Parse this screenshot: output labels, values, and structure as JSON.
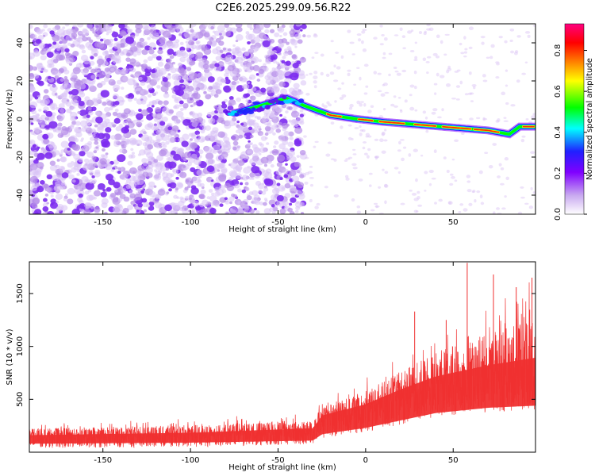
{
  "title": "C2E6.2025.299.09.56.R22",
  "chart_data": [
    {
      "type": "heatmap",
      "name": "spectrogram",
      "xlabel": "Height of straight line (km)",
      "ylabel": "Frequency (Hz)",
      "xlim": [
        -192,
        97
      ],
      "ylim": [
        -50,
        50
      ],
      "xticks": [
        -150,
        -100,
        -50,
        0,
        50
      ],
      "yticks": [
        -40,
        -20,
        0,
        20,
        40
      ],
      "colorbar": {
        "label": "Normalized spectral amplitude",
        "range": [
          0,
          0.93
        ],
        "ticks": [
          0.0,
          0.2,
          0.4,
          0.6,
          0.8
        ],
        "colors": [
          "#ffffff",
          "#c8a8f0",
          "#8000ff",
          "#2020ff",
          "#00ffff",
          "#00ff00",
          "#ffff00",
          "#ff8000",
          "#ff0000",
          "#ff0080"
        ]
      },
      "colors": {
        "noise_light": "#d9c2f5",
        "noise_mid": "#b58ce8",
        "noise_dark": "#7d2cf0"
      },
      "noise_edge_km": -35,
      "ridge": [
        {
          "x": -75,
          "freq": 3,
          "amp": 0.22
        },
        {
          "x": -60,
          "freq": 7,
          "amp": 0.25
        },
        {
          "x": -45,
          "freq": 11,
          "amp": 0.28
        },
        {
          "x": -35,
          "freq": 7,
          "amp": 0.45
        },
        {
          "x": -20,
          "freq": 2,
          "amp": 0.7
        },
        {
          "x": -5,
          "freq": 0,
          "amp": 0.85
        },
        {
          "x": 10,
          "freq": -1.5,
          "amp": 0.9
        },
        {
          "x": 30,
          "freq": -3,
          "amp": 0.92
        },
        {
          "x": 50,
          "freq": -4.5,
          "amp": 0.92
        },
        {
          "x": 70,
          "freq": -6,
          "amp": 0.9
        },
        {
          "x": 82,
          "freq": -8,
          "amp": 0.85
        },
        {
          "x": 88,
          "freq": -4,
          "amp": 0.85
        },
        {
          "x": 97,
          "freq": -4,
          "amp": 0.8
        }
      ]
    },
    {
      "type": "line",
      "name": "snr",
      "xlabel": "Height of straight line (km)",
      "ylabel": "SNR (10 * v/v)",
      "xlim": [
        -192,
        97
      ],
      "ylim": [
        0,
        1800
      ],
      "xticks": [
        -150,
        -100,
        -50,
        0,
        50
      ],
      "yticks": [
        500,
        1000,
        1500
      ],
      "color": "#f03030",
      "envelope": [
        {
          "x": -192,
          "low": 40,
          "mean": 140,
          "high": 280
        },
        {
          "x": -100,
          "low": 50,
          "mean": 160,
          "high": 320
        },
        {
          "x": -30,
          "low": 70,
          "mean": 200,
          "high": 380
        },
        {
          "x": -25,
          "low": 130,
          "mean": 320,
          "high": 500
        },
        {
          "x": 0,
          "low": 190,
          "mean": 410,
          "high": 700
        },
        {
          "x": 20,
          "low": 260,
          "mean": 540,
          "high": 900
        },
        {
          "x": 40,
          "low": 330,
          "mean": 640,
          "high": 1150
        },
        {
          "x": 70,
          "low": 380,
          "mean": 720,
          "high": 1400
        },
        {
          "x": 97,
          "low": 400,
          "mean": 760,
          "high": 1650
        }
      ],
      "peaks": [
        {
          "x": 58,
          "y": 1790
        },
        {
          "x": 73,
          "y": 1680
        },
        {
          "x": 95,
          "y": 1650
        },
        {
          "x": 86,
          "y": 1560
        },
        {
          "x": 28,
          "y": 1330
        },
        {
          "x": 46,
          "y": 1250
        }
      ]
    }
  ]
}
